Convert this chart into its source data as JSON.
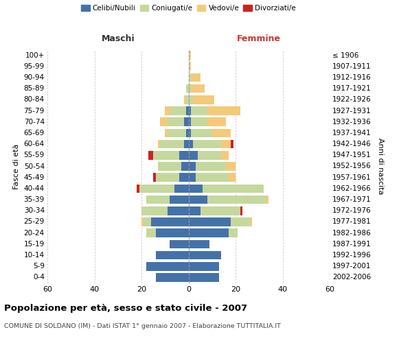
{
  "age_groups": [
    "0-4",
    "5-9",
    "10-14",
    "15-19",
    "20-24",
    "25-29",
    "30-34",
    "35-39",
    "40-44",
    "45-49",
    "50-54",
    "55-59",
    "60-64",
    "65-69",
    "70-74",
    "75-79",
    "80-84",
    "85-89",
    "90-94",
    "95-99",
    "100+"
  ],
  "anni_nascita": [
    "2002-2006",
    "1997-2001",
    "1992-1996",
    "1987-1991",
    "1982-1986",
    "1977-1981",
    "1972-1976",
    "1967-1971",
    "1962-1966",
    "1957-1961",
    "1952-1956",
    "1947-1951",
    "1942-1946",
    "1937-1941",
    "1932-1936",
    "1927-1931",
    "1922-1926",
    "1917-1921",
    "1912-1916",
    "1907-1911",
    "≤ 1906"
  ],
  "maschi": {
    "celibi": [
      14,
      18,
      14,
      8,
      14,
      16,
      9,
      8,
      6,
      4,
      3,
      4,
      2,
      1,
      2,
      1,
      0,
      0,
      0,
      0,
      0
    ],
    "coniugati": [
      0,
      0,
      0,
      0,
      4,
      3,
      11,
      10,
      15,
      10,
      10,
      11,
      10,
      8,
      7,
      7,
      1,
      1,
      0,
      0,
      0
    ],
    "vedovi": [
      0,
      0,
      0,
      0,
      0,
      1,
      0,
      0,
      0,
      0,
      0,
      0,
      1,
      1,
      3,
      2,
      1,
      0,
      0,
      0,
      0
    ],
    "divorziati": [
      0,
      0,
      0,
      0,
      0,
      0,
      0,
      0,
      1,
      1,
      0,
      2,
      0,
      0,
      0,
      0,
      0,
      0,
      0,
      0,
      0
    ]
  },
  "femmine": {
    "nubili": [
      13,
      13,
      14,
      9,
      17,
      18,
      5,
      8,
      6,
      3,
      3,
      4,
      2,
      1,
      1,
      1,
      0,
      0,
      0,
      0,
      0
    ],
    "coniugate": [
      0,
      0,
      0,
      0,
      4,
      8,
      17,
      25,
      26,
      14,
      13,
      10,
      12,
      9,
      7,
      7,
      2,
      1,
      1,
      0,
      0
    ],
    "vedove": [
      0,
      0,
      0,
      0,
      0,
      1,
      0,
      1,
      0,
      3,
      4,
      3,
      4,
      8,
      8,
      14,
      9,
      6,
      4,
      1,
      1
    ],
    "divorziate": [
      0,
      0,
      0,
      0,
      0,
      0,
      1,
      0,
      0,
      0,
      0,
      0,
      1,
      0,
      0,
      0,
      0,
      0,
      0,
      0,
      0
    ]
  },
  "colors": {
    "celibi_nubili": "#4472a8",
    "coniugati": "#c5d89e",
    "vedovi": "#f5c97a",
    "divorziati": "#cc2222"
  },
  "xlim": 60,
  "title": "Popolazione per età, sesso e stato civile - 2007",
  "subtitle": "COMUNE DI SOLDANO (IM) - Dati ISTAT 1° gennaio 2007 - Elaborazione TUTTITALIA.IT",
  "xlabel_left": "Maschi",
  "xlabel_right": "Femmine",
  "ylabel_left": "Fasce di età",
  "ylabel_right": "Anni di nascita",
  "legend_labels": [
    "Celibi/Nubili",
    "Coniugati/e",
    "Vedovi/e",
    "Divorziati/e"
  ]
}
